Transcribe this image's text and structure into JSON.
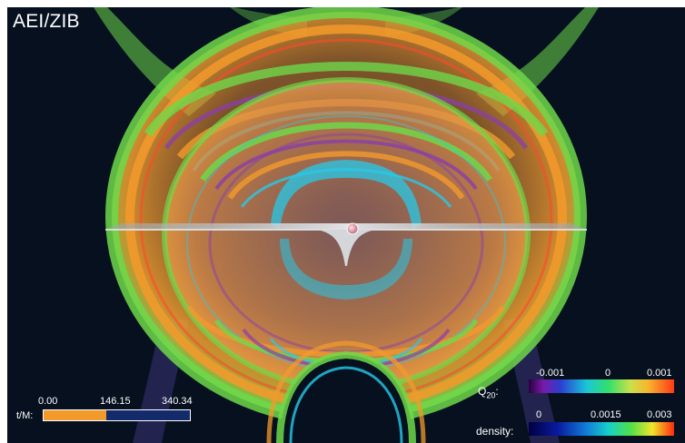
{
  "credit": "AEI/ZIB",
  "time_scale": {
    "label": "t/M:",
    "ticks": [
      "0.00",
      "146.15",
      "340.34"
    ],
    "progress": 0.4294
  },
  "q20_scale": {
    "label_main": "Q",
    "label_sub": "20",
    "label_suffix": ":",
    "ticks": [
      "-0.001",
      "0",
      "0.001"
    ]
  },
  "density_scale": {
    "label": "density:",
    "ticks": [
      "0",
      "0.0015",
      "0.003"
    ]
  },
  "colors": {
    "background": "#06101f",
    "shell_green": "#6ed84a",
    "shell_orange": "#f39a2c",
    "shell_red": "#ff4a2a",
    "shell_cyan": "#27c9e8",
    "shell_purple": "#8a3fa8",
    "plane": "#bfc4c8"
  }
}
